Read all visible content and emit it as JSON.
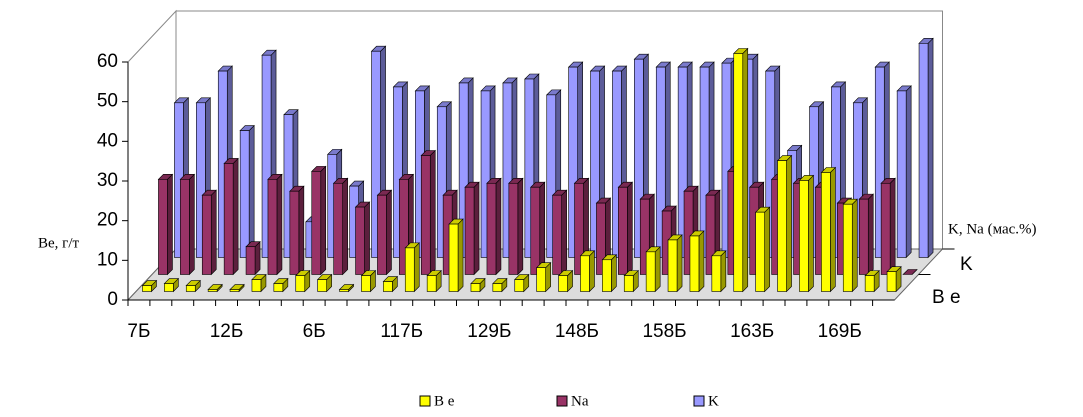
{
  "chart_data": {
    "type": "bar3d",
    "y_label": "Be, г/т",
    "y2_label": "K, Na (мас.%)",
    "categories": [
      "7Б",
      null,
      null,
      null,
      "12Б",
      null,
      null,
      null,
      "6Б",
      null,
      null,
      null,
      "117Б",
      null,
      null,
      null,
      "129Б",
      null,
      null,
      null,
      "148Б",
      null,
      null,
      null,
      "158Б",
      null,
      null,
      null,
      "163Б",
      null,
      null,
      null,
      "169Б",
      null,
      null
    ],
    "series": [
      {
        "name": "B e",
        "color": "#ffff00",
        "values": [
          1.5,
          2,
          1.5,
          0.5,
          0.5,
          3,
          2,
          4,
          3,
          0.5,
          4,
          2.5,
          11,
          4,
          17,
          2,
          2,
          3,
          6,
          4,
          9,
          8,
          4,
          10,
          13,
          14,
          9,
          60,
          20,
          33,
          28,
          30,
          22,
          4,
          5
        ]
      },
      {
        "name": "Na",
        "color": "#993366",
        "values": [
          24,
          24,
          20,
          28,
          7,
          24,
          21,
          26,
          23,
          17,
          20,
          24,
          30,
          20,
          22,
          23,
          23,
          22,
          20,
          23,
          18,
          22,
          19,
          16,
          21,
          20,
          26,
          22,
          24,
          23,
          22,
          18,
          19,
          23,
          0
        ]
      },
      {
        "name": "K",
        "color": "#9999ff",
        "values": [
          39,
          39,
          47,
          32,
          51,
          36,
          9,
          26,
          18,
          52,
          43,
          42,
          38,
          44,
          42,
          44,
          45,
          41,
          48,
          47,
          47,
          50,
          48,
          48,
          48,
          49,
          50,
          47,
          27,
          38,
          43,
          39,
          48,
          42,
          54
        ]
      }
    ],
    "ylim": [
      0,
      60
    ],
    "yticks": [
      0,
      10,
      20,
      30,
      40,
      50,
      60
    ]
  }
}
